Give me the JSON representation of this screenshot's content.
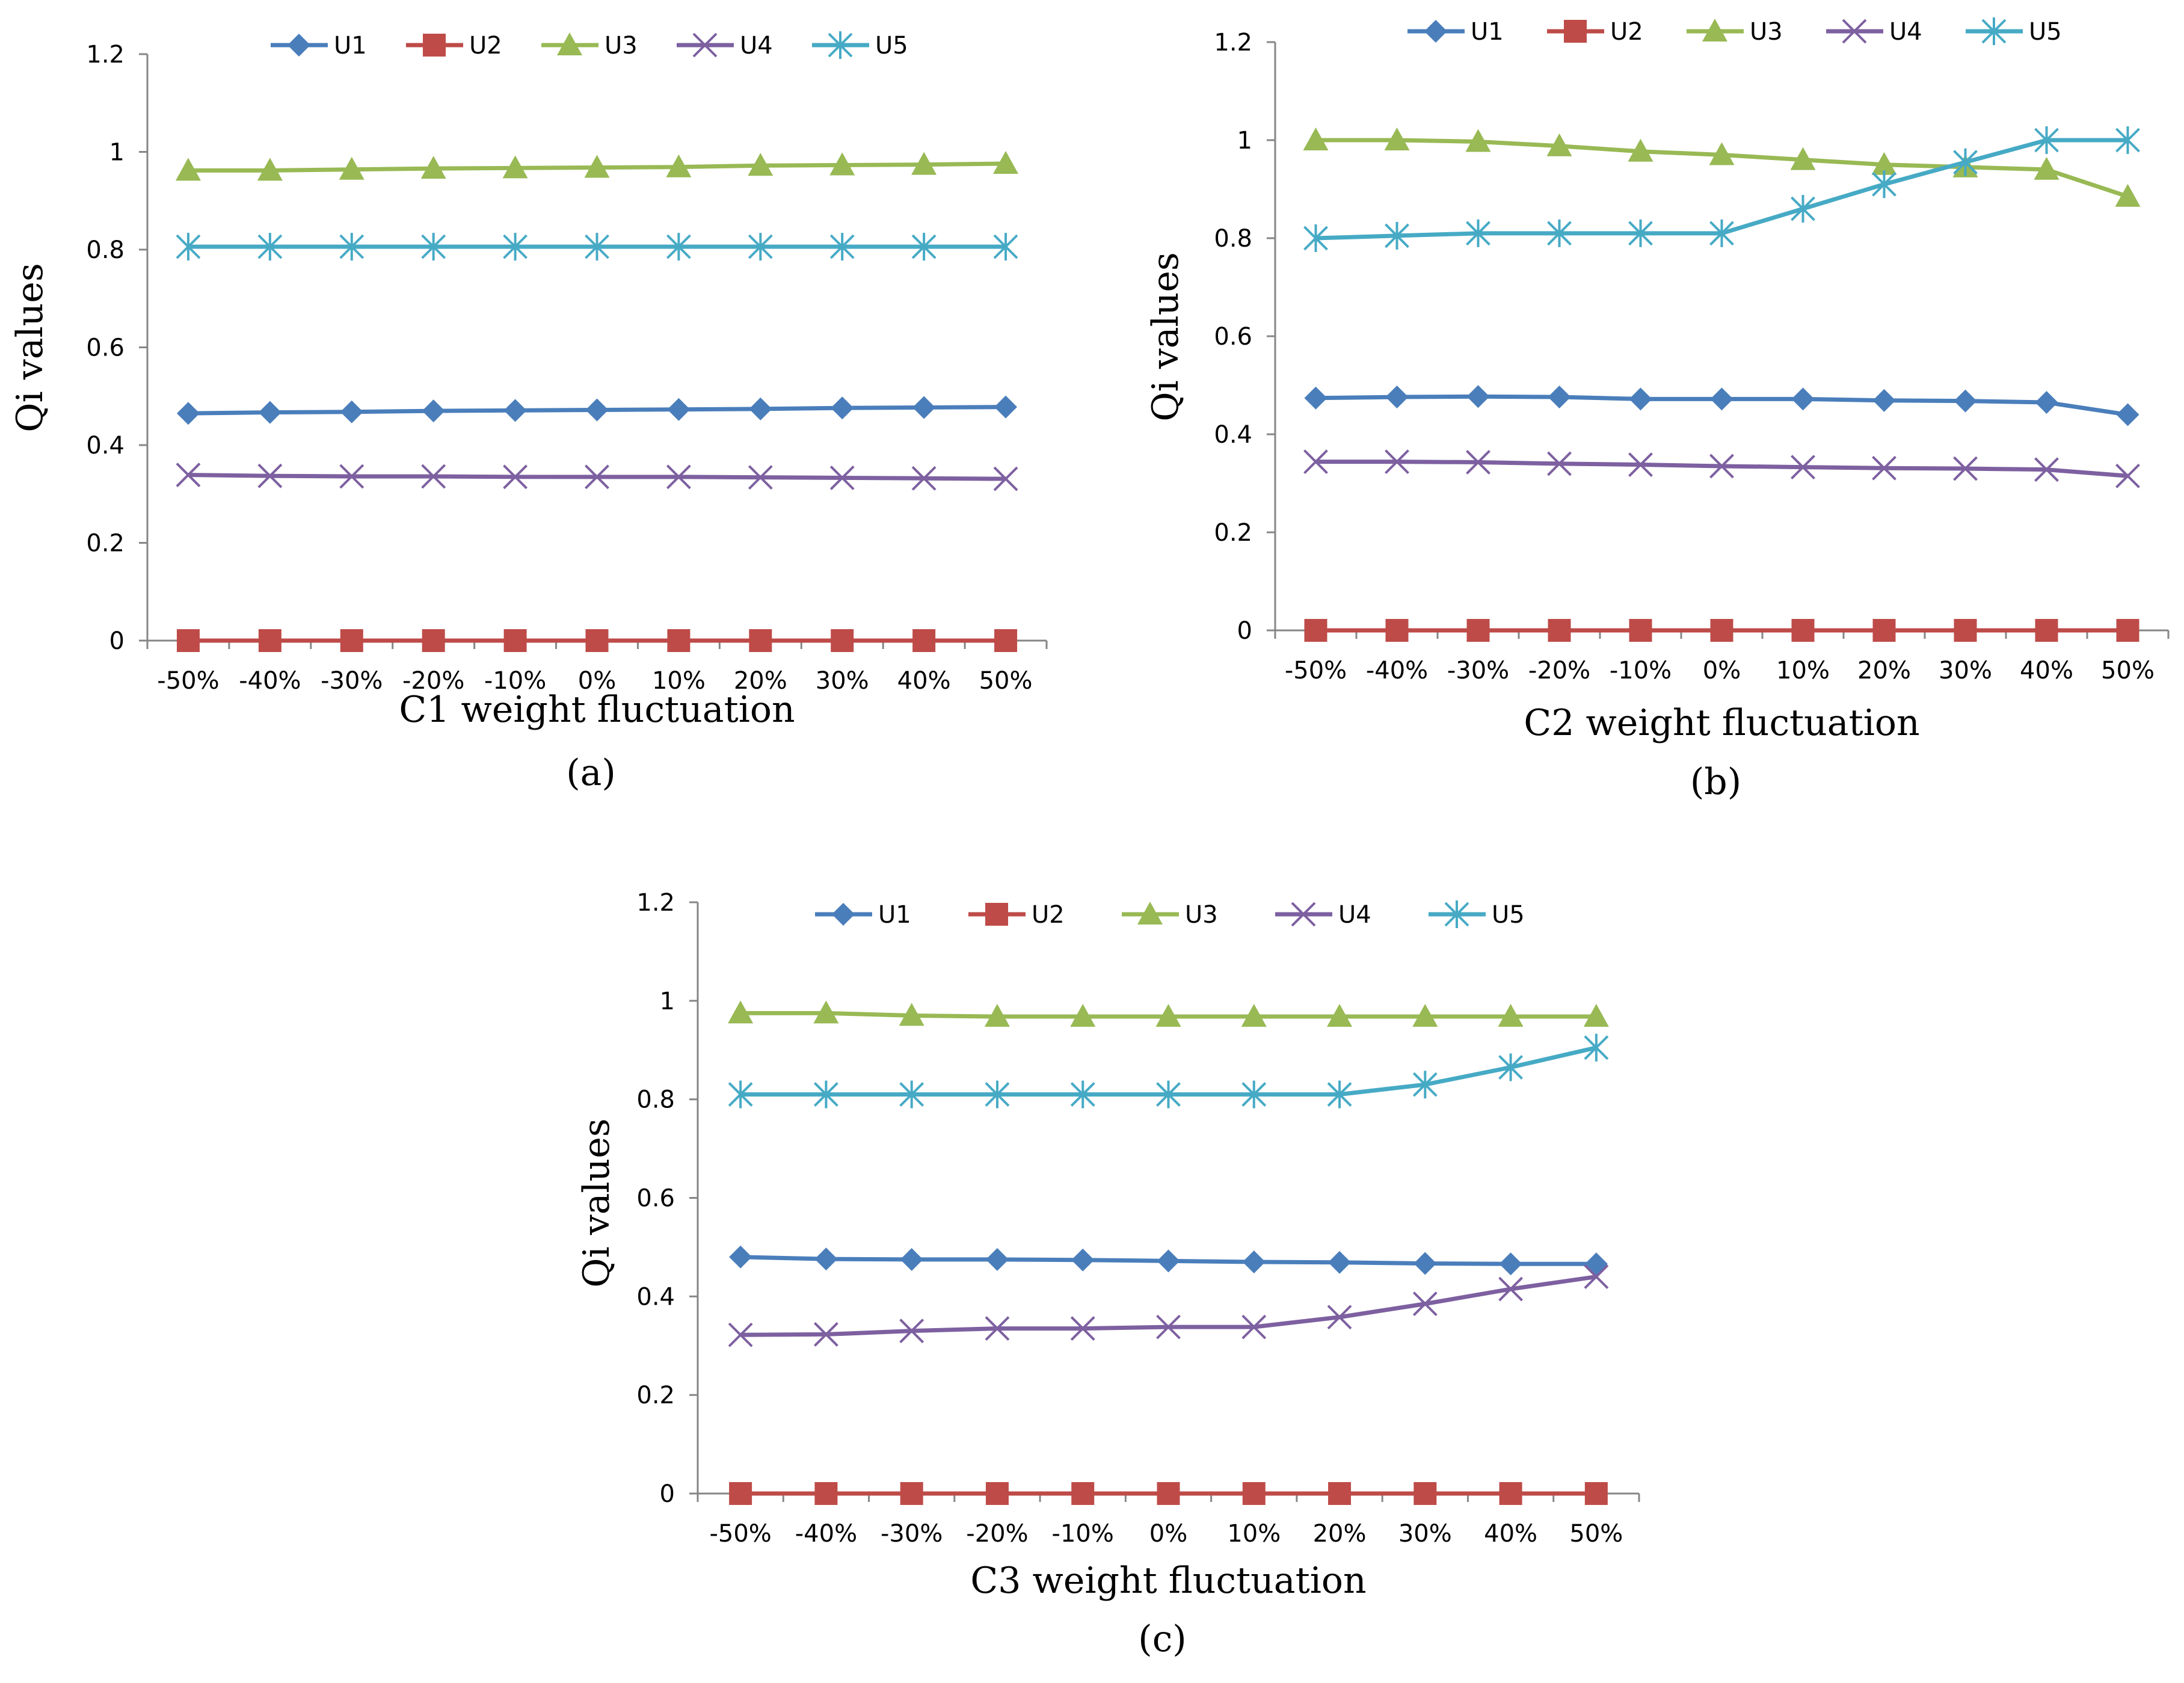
{
  "chart_data": [
    {
      "type": "line",
      "caption": "(a)",
      "xlabel": "C1 weight  fluctuation",
      "ylabel": "Qi  values",
      "ylim": [
        0,
        1.2
      ],
      "yticks": [
        "0",
        "0.2",
        "0.4",
        "0.6",
        "0.8",
        "1",
        "1.2"
      ],
      "categories": [
        "-50%",
        "-40%",
        "-30%",
        "-20%",
        "-10%",
        "0%",
        "10%",
        "20%",
        "30%",
        "40%",
        "50%"
      ],
      "legend_position": "top",
      "series": [
        {
          "name": "U1",
          "color": "#4a7ebb",
          "marker": "diamond",
          "values": [
            0.465,
            0.467,
            0.468,
            0.47,
            0.471,
            0.472,
            0.473,
            0.474,
            0.476,
            0.477,
            0.478
          ]
        },
        {
          "name": "U2",
          "color": "#be4b48",
          "marker": "square",
          "values": [
            0,
            0,
            0,
            0,
            0,
            0,
            0,
            0,
            0,
            0,
            0
          ]
        },
        {
          "name": "U3",
          "color": "#98b954",
          "marker": "triangle",
          "values": [
            0.962,
            0.962,
            0.964,
            0.966,
            0.967,
            0.968,
            0.969,
            0.972,
            0.973,
            0.974,
            0.976
          ]
        },
        {
          "name": "U4",
          "color": "#7d60a0",
          "marker": "x",
          "values": [
            0.339,
            0.337,
            0.336,
            0.336,
            0.335,
            0.335,
            0.335,
            0.334,
            0.333,
            0.332,
            0.331
          ]
        },
        {
          "name": "U5",
          "color": "#46aac5",
          "marker": "star",
          "values": [
            0.806,
            0.806,
            0.806,
            0.806,
            0.806,
            0.806,
            0.806,
            0.806,
            0.806,
            0.806,
            0.806
          ]
        }
      ]
    },
    {
      "type": "line",
      "caption": "(b)",
      "xlabel": "C2 weight  fluctuation",
      "ylabel": "Qi  values",
      "ylim": [
        0,
        1.2
      ],
      "yticks": [
        "0",
        "0.2",
        "0.4",
        "0.6",
        "0.8",
        "1",
        "1.2"
      ],
      "categories": [
        "-50%",
        "-40%",
        "-30%",
        "-20%",
        "-10%",
        "0%",
        "10%",
        "20%",
        "30%",
        "40%",
        "50%"
      ],
      "legend_position": "top",
      "series": [
        {
          "name": "U1",
          "color": "#4a7ebb",
          "marker": "diamond",
          "values": [
            0.474,
            0.476,
            0.477,
            0.476,
            0.472,
            0.472,
            0.472,
            0.469,
            0.468,
            0.465,
            0.44
          ]
        },
        {
          "name": "U2",
          "color": "#be4b48",
          "marker": "square",
          "values": [
            0,
            0,
            0,
            0,
            0,
            0,
            0,
            0,
            0,
            0,
            0
          ]
        },
        {
          "name": "U3",
          "color": "#98b954",
          "marker": "triangle",
          "values": [
            1.0,
            1.0,
            0.997,
            0.988,
            0.977,
            0.97,
            0.96,
            0.95,
            0.945,
            0.94,
            0.885
          ]
        },
        {
          "name": "U4",
          "color": "#7d60a0",
          "marker": "x",
          "values": [
            0.344,
            0.344,
            0.343,
            0.34,
            0.338,
            0.335,
            0.333,
            0.331,
            0.33,
            0.328,
            0.315
          ]
        },
        {
          "name": "U5",
          "color": "#46aac5",
          "marker": "star",
          "values": [
            0.8,
            0.805,
            0.81,
            0.81,
            0.81,
            0.81,
            0.86,
            0.91,
            0.955,
            1.0,
            1.0
          ]
        }
      ]
    },
    {
      "type": "line",
      "caption": "(c)",
      "xlabel": "C3 weight  fluctuation",
      "ylabel": "Qi  values",
      "ylim": [
        0,
        1.2
      ],
      "yticks": [
        "0",
        "0.2",
        "0.4",
        "0.6",
        "0.8",
        "1",
        "1.2"
      ],
      "categories": [
        "-50%",
        "-40%",
        "-30%",
        "-20%",
        "-10%",
        "0%",
        "10%",
        "20%",
        "30%",
        "40%",
        "50%"
      ],
      "legend_position": "top",
      "series": [
        {
          "name": "U1",
          "color": "#4a7ebb",
          "marker": "diamond",
          "values": [
            0.48,
            0.476,
            0.475,
            0.475,
            0.474,
            0.472,
            0.47,
            0.469,
            0.467,
            0.466,
            0.466
          ]
        },
        {
          "name": "U2",
          "color": "#be4b48",
          "marker": "square",
          "values": [
            0,
            0,
            0,
            0,
            0,
            0,
            0,
            0,
            0,
            0,
            0
          ]
        },
        {
          "name": "U3",
          "color": "#98b954",
          "marker": "triangle",
          "values": [
            0.975,
            0.975,
            0.97,
            0.968,
            0.968,
            0.968,
            0.968,
            0.968,
            0.968,
            0.968,
            0.968
          ]
        },
        {
          "name": "U4",
          "color": "#7d60a0",
          "marker": "x",
          "values": [
            0.322,
            0.323,
            0.33,
            0.335,
            0.335,
            0.338,
            0.338,
            0.358,
            0.385,
            0.415,
            0.44
          ]
        },
        {
          "name": "U5",
          "color": "#46aac5",
          "marker": "star",
          "values": [
            0.81,
            0.81,
            0.81,
            0.81,
            0.81,
            0.81,
            0.81,
            0.81,
            0.83,
            0.865,
            0.905
          ]
        }
      ]
    }
  ]
}
